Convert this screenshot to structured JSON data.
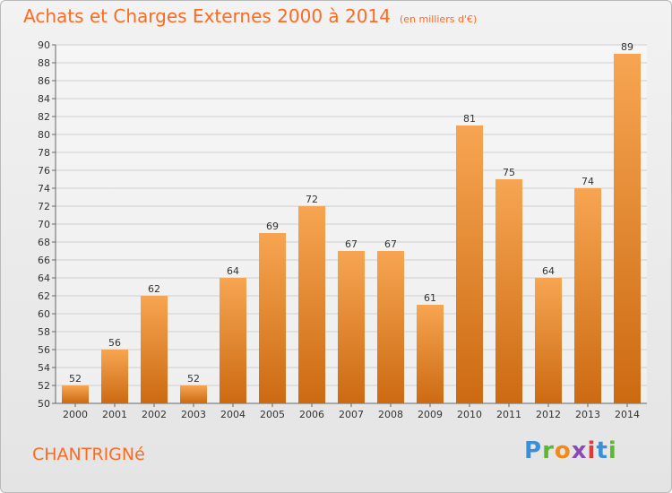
{
  "title": {
    "main": "Achats et Charges Externes 2000 à 2014",
    "unit": "(en milliers d'€)"
  },
  "location": "CHANTRIGNé",
  "logo": {
    "text": "Proxiti",
    "colors": [
      "#3b8fd9",
      "#5cb82f",
      "#f08a1c",
      "#8a4bb8",
      "#e03a3a",
      "#3b8fd9",
      "#5cb82f"
    ]
  },
  "colors": {
    "bar_top": "#f7a552",
    "bar_bottom": "#cc6a12",
    "title": "#ff6a20"
  },
  "chart_data": {
    "type": "bar",
    "categories": [
      "2000",
      "2001",
      "2002",
      "2003",
      "2004",
      "2005",
      "2006",
      "2007",
      "2008",
      "2009",
      "2010",
      "2011",
      "2012",
      "2013",
      "2014"
    ],
    "values": [
      52,
      56,
      62,
      52,
      64,
      69,
      72,
      67,
      67,
      61,
      81,
      75,
      64,
      74,
      89
    ],
    "ylim": [
      50,
      90
    ],
    "yticks": [
      50,
      52,
      54,
      56,
      58,
      60,
      62,
      64,
      66,
      68,
      70,
      72,
      74,
      76,
      78,
      80,
      82,
      84,
      86,
      88,
      90
    ],
    "grid": true,
    "legend": "none"
  }
}
